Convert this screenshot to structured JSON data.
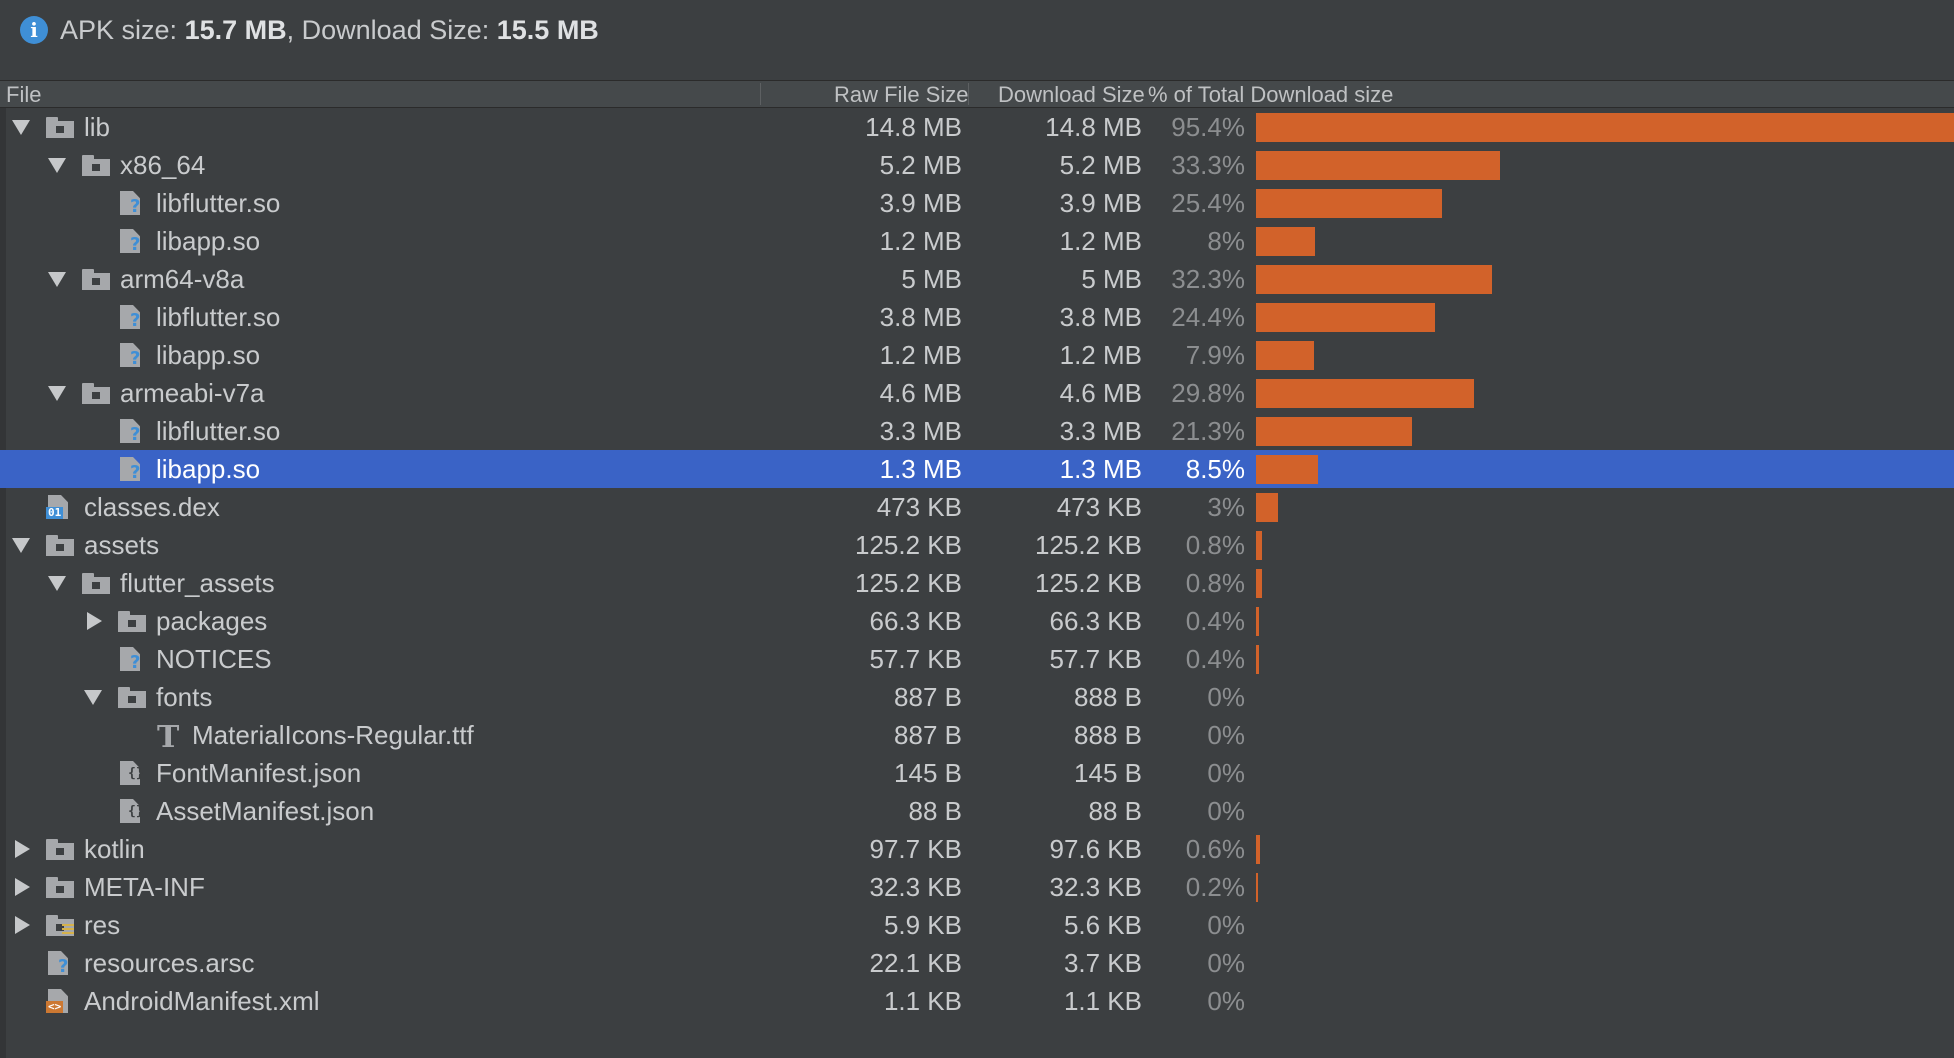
{
  "summary": {
    "apk_label": "APK size:",
    "apk_value": "15.7 MB",
    "sep": ",",
    "download_label": "Download Size:",
    "download_value": "15.5 MB"
  },
  "columns": {
    "file": "File",
    "raw": "Raw File Size",
    "download": "Download Size",
    "percent": "% of Total Download size"
  },
  "colors": {
    "bar": "#d2622a",
    "selection": "#3a63c6",
    "background": "#3c3f41",
    "info": "#3f8fd6"
  },
  "rows": [
    {
      "name": "lib",
      "icon": "folder-icon",
      "depth": 0,
      "toggle": "expanded",
      "raw": "14.8 MB",
      "download": "14.8 MB",
      "percent": "95.4%",
      "fraction": 0.954
    },
    {
      "name": "x86_64",
      "icon": "folder-icon",
      "depth": 1,
      "toggle": "expanded",
      "raw": "5.2 MB",
      "download": "5.2 MB",
      "percent": "33.3%",
      "fraction": 0.333
    },
    {
      "name": "libflutter.so",
      "icon": "unknown-file-icon",
      "depth": 2,
      "toggle": "none",
      "raw": "3.9 MB",
      "download": "3.9 MB",
      "percent": "25.4%",
      "fraction": 0.254
    },
    {
      "name": "libapp.so",
      "icon": "unknown-file-icon",
      "depth": 2,
      "toggle": "none",
      "raw": "1.2 MB",
      "download": "1.2 MB",
      "percent": "8%",
      "fraction": 0.08
    },
    {
      "name": "arm64-v8a",
      "icon": "folder-icon",
      "depth": 1,
      "toggle": "expanded",
      "raw": "5 MB",
      "download": "5 MB",
      "percent": "32.3%",
      "fraction": 0.323
    },
    {
      "name": "libflutter.so",
      "icon": "unknown-file-icon",
      "depth": 2,
      "toggle": "none",
      "raw": "3.8 MB",
      "download": "3.8 MB",
      "percent": "24.4%",
      "fraction": 0.244
    },
    {
      "name": "libapp.so",
      "icon": "unknown-file-icon",
      "depth": 2,
      "toggle": "none",
      "raw": "1.2 MB",
      "download": "1.2 MB",
      "percent": "7.9%",
      "fraction": 0.079
    },
    {
      "name": "armeabi-v7a",
      "icon": "folder-icon",
      "depth": 1,
      "toggle": "expanded",
      "raw": "4.6 MB",
      "download": "4.6 MB",
      "percent": "29.8%",
      "fraction": 0.298
    },
    {
      "name": "libflutter.so",
      "icon": "unknown-file-icon",
      "depth": 2,
      "toggle": "none",
      "raw": "3.3 MB",
      "download": "3.3 MB",
      "percent": "21.3%",
      "fraction": 0.213
    },
    {
      "name": "libapp.so",
      "icon": "unknown-file-icon",
      "depth": 2,
      "toggle": "none",
      "raw": "1.3 MB",
      "download": "1.3 MB",
      "percent": "8.5%",
      "fraction": 0.085,
      "selected": true
    },
    {
      "name": "classes.dex",
      "icon": "dex-file-icon",
      "depth": 0,
      "toggle": "none",
      "raw": "473 KB",
      "download": "473 KB",
      "percent": "3%",
      "fraction": 0.03
    },
    {
      "name": "assets",
      "icon": "folder-icon",
      "depth": 0,
      "toggle": "expanded",
      "raw": "125.2 KB",
      "download": "125.2 KB",
      "percent": "0.8%",
      "fraction": 0.008
    },
    {
      "name": "flutter_assets",
      "icon": "folder-icon",
      "depth": 1,
      "toggle": "expanded",
      "raw": "125.2 KB",
      "download": "125.2 KB",
      "percent": "0.8%",
      "fraction": 0.008
    },
    {
      "name": "packages",
      "icon": "folder-icon",
      "depth": 2,
      "toggle": "collapsed",
      "raw": "66.3 KB",
      "download": "66.3 KB",
      "percent": "0.4%",
      "fraction": 0.004
    },
    {
      "name": "NOTICES",
      "icon": "unknown-file-icon",
      "depth": 2,
      "toggle": "none",
      "raw": "57.7 KB",
      "download": "57.7 KB",
      "percent": "0.4%",
      "fraction": 0.004
    },
    {
      "name": "fonts",
      "icon": "folder-icon",
      "depth": 2,
      "toggle": "expanded",
      "raw": "887 B",
      "download": "888 B",
      "percent": "0%",
      "fraction": 0
    },
    {
      "name": "MaterialIcons-Regular.ttf",
      "icon": "font-file-icon",
      "depth": 3,
      "toggle": "none",
      "raw": "887 B",
      "download": "888 B",
      "percent": "0%",
      "fraction": 0
    },
    {
      "name": "FontManifest.json",
      "icon": "json-file-icon",
      "depth": 2,
      "toggle": "none",
      "raw": "145 B",
      "download": "145 B",
      "percent": "0%",
      "fraction": 0
    },
    {
      "name": "AssetManifest.json",
      "icon": "json-file-icon",
      "depth": 2,
      "toggle": "none",
      "raw": "88 B",
      "download": "88 B",
      "percent": "0%",
      "fraction": 0
    },
    {
      "name": "kotlin",
      "icon": "folder-icon",
      "depth": 0,
      "toggle": "collapsed",
      "raw": "97.7 KB",
      "download": "97.6 KB",
      "percent": "0.6%",
      "fraction": 0.006
    },
    {
      "name": "META-INF",
      "icon": "folder-icon",
      "depth": 0,
      "toggle": "collapsed",
      "raw": "32.3 KB",
      "download": "32.3 KB",
      "percent": "0.2%",
      "fraction": 0.002
    },
    {
      "name": "res",
      "icon": "resource-folder-icon",
      "depth": 0,
      "toggle": "collapsed",
      "raw": "5.9 KB",
      "download": "5.6 KB",
      "percent": "0%",
      "fraction": 0
    },
    {
      "name": "resources.arsc",
      "icon": "unknown-file-icon",
      "depth": 0,
      "toggle": "none",
      "raw": "22.1 KB",
      "download": "3.7 KB",
      "percent": "0%",
      "fraction": 0
    },
    {
      "name": "AndroidManifest.xml",
      "icon": "xml-file-icon",
      "depth": 0,
      "toggle": "none",
      "raw": "1.1 KB",
      "download": "1.1 KB",
      "percent": "0%",
      "fraction": 0
    }
  ]
}
